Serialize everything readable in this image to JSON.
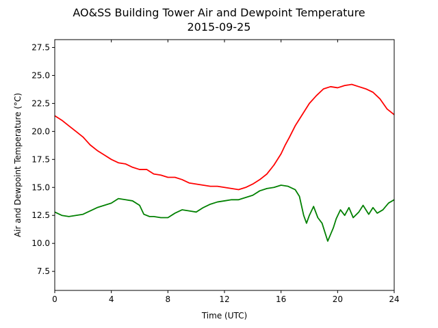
{
  "chart_data": {
    "type": "line",
    "title": "AO&SS Building Tower Air and Dewpoint Temperature",
    "subtitle": "2015-09-25",
    "xlabel": "Time (UTC)",
    "ylabel": "Air and Dewpoint Temperature (°C)",
    "xlim": [
      0,
      24
    ],
    "ylim": [
      5.8,
      28.2
    ],
    "x_ticks": [
      0,
      4,
      8,
      12,
      16,
      20,
      24
    ],
    "y_ticks": [
      7.5,
      10.0,
      12.5,
      15.0,
      17.5,
      20.0,
      22.5,
      25.0,
      27.5
    ],
    "y_tick_labels": [
      "7.5",
      "10.0",
      "12.5",
      "15.0",
      "17.5",
      "20.0",
      "22.5",
      "25.0",
      "27.5"
    ],
    "grid": false,
    "series": [
      {
        "color": "#ff0000",
        "points": [
          [
            0,
            21.4
          ],
          [
            0.5,
            21.0
          ],
          [
            1.0,
            20.5
          ],
          [
            1.5,
            20.0
          ],
          [
            2.0,
            19.5
          ],
          [
            2.5,
            18.8
          ],
          [
            3.0,
            18.3
          ],
          [
            3.5,
            17.9
          ],
          [
            4.0,
            17.5
          ],
          [
            4.5,
            17.2
          ],
          [
            5.0,
            17.1
          ],
          [
            5.5,
            16.8
          ],
          [
            6.0,
            16.6
          ],
          [
            6.5,
            16.6
          ],
          [
            7.0,
            16.2
          ],
          [
            7.5,
            16.1
          ],
          [
            8.0,
            15.9
          ],
          [
            8.5,
            15.9
          ],
          [
            9.0,
            15.7
          ],
          [
            9.5,
            15.4
          ],
          [
            10.0,
            15.3
          ],
          [
            10.5,
            15.2
          ],
          [
            11.0,
            15.1
          ],
          [
            11.5,
            15.1
          ],
          [
            12.0,
            15.0
          ],
          [
            12.5,
            14.9
          ],
          [
            13.0,
            14.8
          ],
          [
            13.5,
            15.0
          ],
          [
            14.0,
            15.3
          ],
          [
            14.5,
            15.7
          ],
          [
            15.0,
            16.2
          ],
          [
            15.5,
            17.0
          ],
          [
            16.0,
            18.0
          ],
          [
            16.3,
            18.8
          ],
          [
            16.6,
            19.5
          ],
          [
            17.0,
            20.5
          ],
          [
            17.5,
            21.5
          ],
          [
            18.0,
            22.5
          ],
          [
            18.5,
            23.2
          ],
          [
            19.0,
            23.8
          ],
          [
            19.5,
            24.0
          ],
          [
            20.0,
            23.9
          ],
          [
            20.5,
            24.1
          ],
          [
            21.0,
            24.2
          ],
          [
            21.5,
            24.0
          ],
          [
            22.0,
            23.8
          ],
          [
            22.5,
            23.5
          ],
          [
            23.0,
            22.9
          ],
          [
            23.5,
            22.0
          ],
          [
            24.0,
            21.5
          ]
        ]
      },
      {
        "color": "#008000",
        "points": [
          [
            0,
            12.8
          ],
          [
            0.5,
            12.5
          ],
          [
            1.0,
            12.4
          ],
          [
            1.5,
            12.5
          ],
          [
            2.0,
            12.6
          ],
          [
            2.5,
            12.9
          ],
          [
            3.0,
            13.2
          ],
          [
            3.5,
            13.4
          ],
          [
            4.0,
            13.6
          ],
          [
            4.5,
            14.0
          ],
          [
            5.0,
            13.9
          ],
          [
            5.5,
            13.8
          ],
          [
            6.0,
            13.4
          ],
          [
            6.3,
            12.6
          ],
          [
            6.7,
            12.4
          ],
          [
            7.0,
            12.4
          ],
          [
            7.5,
            12.3
          ],
          [
            8.0,
            12.3
          ],
          [
            8.5,
            12.7
          ],
          [
            9.0,
            13.0
          ],
          [
            9.5,
            12.9
          ],
          [
            10.0,
            12.8
          ],
          [
            10.5,
            13.2
          ],
          [
            11.0,
            13.5
          ],
          [
            11.5,
            13.7
          ],
          [
            12.0,
            13.8
          ],
          [
            12.5,
            13.9
          ],
          [
            13.0,
            13.9
          ],
          [
            13.5,
            14.1
          ],
          [
            14.0,
            14.3
          ],
          [
            14.5,
            14.7
          ],
          [
            15.0,
            14.9
          ],
          [
            15.5,
            15.0
          ],
          [
            16.0,
            15.2
          ],
          [
            16.5,
            15.1
          ],
          [
            17.0,
            14.8
          ],
          [
            17.3,
            14.2
          ],
          [
            17.6,
            12.5
          ],
          [
            17.8,
            11.8
          ],
          [
            18.0,
            12.5
          ],
          [
            18.3,
            13.3
          ],
          [
            18.6,
            12.3
          ],
          [
            18.9,
            11.8
          ],
          [
            19.1,
            11.0
          ],
          [
            19.3,
            10.2
          ],
          [
            19.5,
            10.8
          ],
          [
            19.7,
            11.4
          ],
          [
            19.9,
            12.2
          ],
          [
            20.2,
            13.0
          ],
          [
            20.5,
            12.5
          ],
          [
            20.8,
            13.2
          ],
          [
            21.1,
            12.3
          ],
          [
            21.5,
            12.8
          ],
          [
            21.8,
            13.4
          ],
          [
            22.2,
            12.6
          ],
          [
            22.5,
            13.2
          ],
          [
            22.8,
            12.7
          ],
          [
            23.2,
            13.0
          ],
          [
            23.6,
            13.6
          ],
          [
            24.0,
            13.9
          ]
        ]
      }
    ]
  }
}
